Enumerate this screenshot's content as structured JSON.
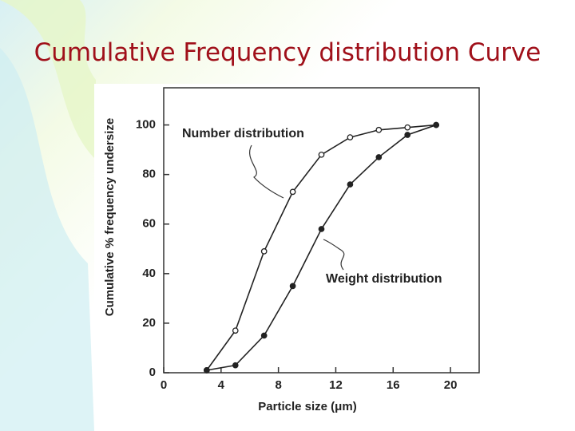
{
  "chart_data": {
    "type": "line",
    "title": "Cumulative Frequency distribution Curve",
    "x_label": "Particle size (μm)",
    "y_label": "Cumulative % frequency undersize",
    "annotations": [
      "Number distribution",
      "Weight distribution"
    ],
    "x": [
      3,
      5,
      7,
      9,
      11,
      13,
      15,
      17,
      19
    ],
    "series": [
      {
        "name": "Number distribution",
        "color": "#222222",
        "marker": "open",
        "values": [
          1,
          17,
          49,
          73,
          88,
          95,
          98,
          99,
          100
        ]
      },
      {
        "name": "Weight distribution",
        "color": "#222222",
        "marker": "filled",
        "values": [
          1,
          3,
          15,
          35,
          58,
          76,
          87,
          96,
          100
        ]
      }
    ],
    "xlim": [
      0,
      22
    ],
    "xticks": [
      0,
      4,
      8,
      12,
      16,
      20
    ],
    "ylim": [
      0,
      115
    ],
    "yticks": [
      0,
      20,
      40,
      60,
      80,
      100
    ]
  }
}
